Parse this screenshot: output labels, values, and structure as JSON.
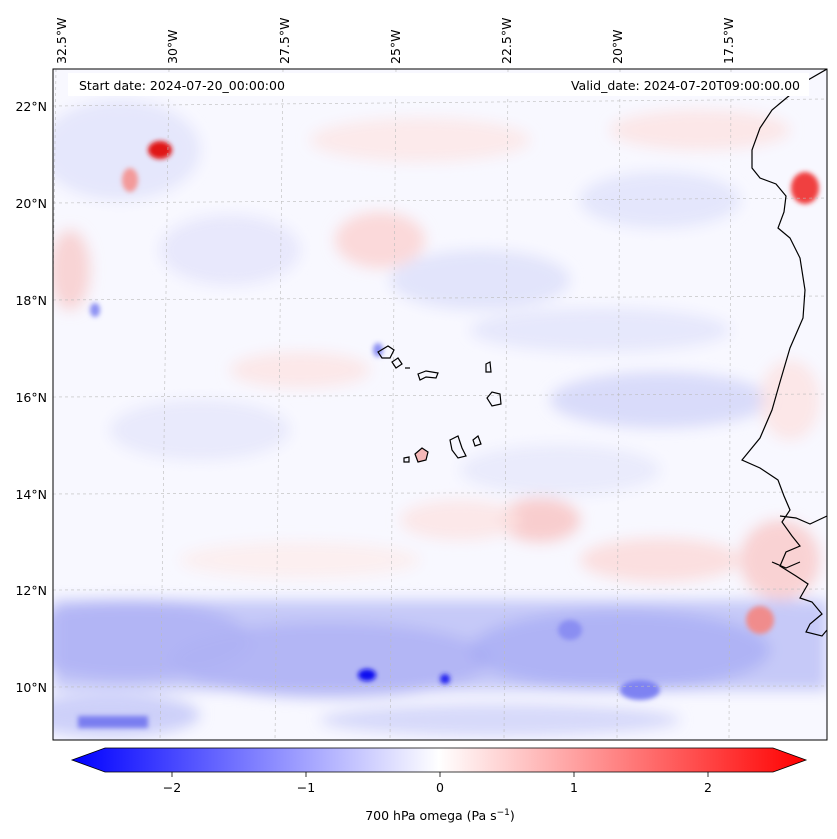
{
  "map": {
    "start_date": "Start date: 2024-07-20_00:00:00",
    "valid_date": "Valid_date: 2024-07-20T09:00:00.00",
    "lon_labels": [
      "32.5°W",
      "30°W",
      "27.5°W",
      "25°W",
      "22.5°W",
      "20°W",
      "17.5°W"
    ],
    "lat_labels": [
      "22°N",
      "20°N",
      "18°N",
      "16°N",
      "14°N",
      "12°N",
      "10°N"
    ],
    "colorbar": {
      "title": "700 hPa omega (Pa s",
      "title_exp": "−1",
      "title_end": ")",
      "ticks": [
        "−2",
        "−1",
        "0",
        "1",
        "2"
      ],
      "tick_values": [
        -2,
        -1,
        0,
        1,
        2
      ],
      "min": -2.6,
      "max": 2.6,
      "color_neg": "#0000ff",
      "color_zero": "#ffffff",
      "color_pos": "#ff0000"
    }
  }
}
